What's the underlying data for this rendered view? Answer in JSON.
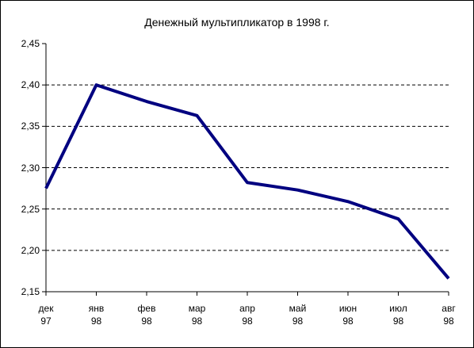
{
  "chart_data": {
    "type": "line",
    "title": "Денежный мультипликатор в 1998 г.",
    "categories": [
      "дек\n97",
      "янв\n98",
      "фев\n98",
      "мар\n98",
      "апр\n98",
      "май\n98",
      "июн\n98",
      "июл\n98",
      "авг\n98"
    ],
    "values": [
      2.275,
      2.4,
      2.38,
      2.363,
      2.282,
      2.273,
      2.259,
      2.238,
      2.166
    ],
    "color": "#000080",
    "ylim": [
      2.15,
      2.45
    ],
    "yticks": [
      {
        "value": 2.15,
        "label": "2,15"
      },
      {
        "value": 2.2,
        "label": "2,20"
      },
      {
        "value": 2.25,
        "label": "2,25"
      },
      {
        "value": 2.3,
        "label": "2,30"
      },
      {
        "value": 2.35,
        "label": "2,35"
      },
      {
        "value": 2.4,
        "label": "2,40"
      },
      {
        "value": 2.45,
        "label": "2,45"
      }
    ],
    "grid": true
  }
}
